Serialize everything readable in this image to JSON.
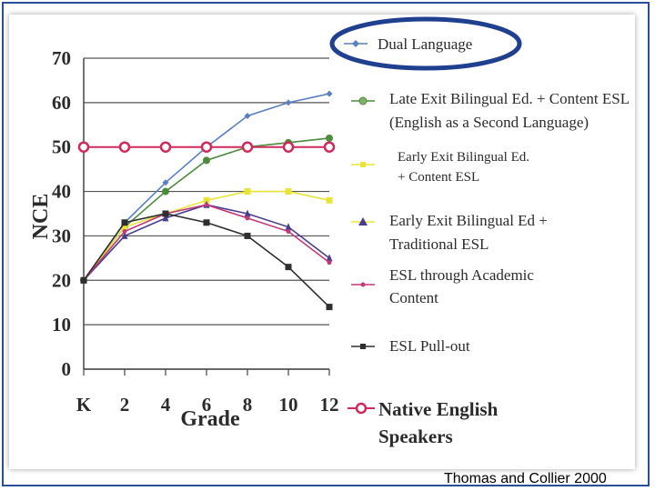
{
  "chart_data": {
    "type": "line",
    "title": "",
    "xlabel": "Grade",
    "ylabel": "NCE",
    "categories": [
      "K",
      "2",
      "4",
      "6",
      "8",
      "10",
      "12"
    ],
    "ylim": [
      0,
      70
    ],
    "yticks": [
      "0",
      "10",
      "20",
      "30",
      "40",
      "50",
      "60",
      "70"
    ],
    "grid": "horizontal",
    "legend_position": "right",
    "series": [
      {
        "name": "Dual Language",
        "color": "#5b7fc4",
        "marker": "diamond",
        "values": [
          20,
          33,
          42,
          50,
          57,
          60,
          62
        ]
      },
      {
        "name": "Late Exit Bilingual Ed. + Content ESL (English as a Second Language)",
        "color": "#4c8a3c",
        "marker": "circle",
        "values": [
          20,
          32,
          40,
          47,
          50,
          51,
          52
        ]
      },
      {
        "name": "Early Exit Bilingual Ed. + Content ESL",
        "color": "#e8e53a",
        "marker": "square",
        "values": [
          20,
          32,
          35,
          38,
          40,
          40,
          38
        ]
      },
      {
        "name": "Early Exit Bilingual Ed + Traditional ESL",
        "color": "#4a3d8c",
        "marker": "triangle",
        "values": [
          20,
          30,
          34,
          37,
          35,
          32,
          25
        ]
      },
      {
        "name": "ESL through Academic Content",
        "color": "#c0397a",
        "marker": "star",
        "values": [
          20,
          31,
          35,
          37,
          34,
          31,
          24
        ]
      },
      {
        "name": "ESL Pull-out",
        "color": "#2f2f2f",
        "marker": "square",
        "values": [
          20,
          33,
          35,
          33,
          30,
          23,
          14
        ]
      },
      {
        "name": "Native English Speakers",
        "color": "#d02a5c",
        "marker": "circle",
        "values": [
          50,
          50,
          50,
          50,
          50,
          50,
          50
        ]
      }
    ]
  },
  "legend": {
    "dual_language": "Dual Language",
    "late_exit_line1": "Late Exit Bilingual Ed. + Content ESL",
    "late_exit_line2": "(English as a Second Language)",
    "early_content_line1": "Early Exit Bilingual Ed.",
    "early_content_line2": "+ Content ESL",
    "early_trad_line1": "Early Exit Bilingual Ed +",
    "early_trad_line2": "Traditional ESL",
    "academic_line1": "ESL through Academic",
    "academic_line2": "Content",
    "pullout": "ESL Pull-out",
    "native_line1": "Native English",
    "native_line2": "Speakers"
  },
  "highlight": {
    "color": "#1f3f8f",
    "target": "Dual Language"
  },
  "credit": "Thomas and Collier 2000"
}
